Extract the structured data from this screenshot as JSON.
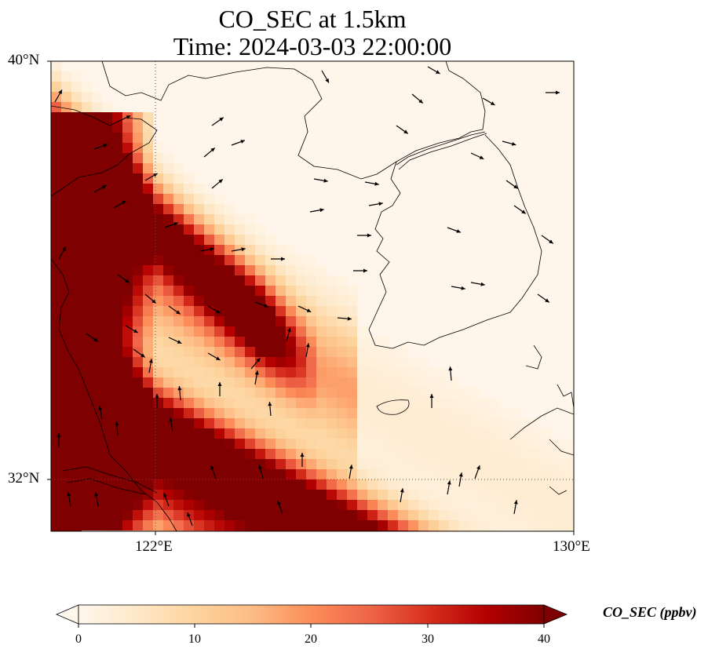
{
  "title": {
    "line1": "CO_SEC at 1.5km",
    "line2": "Time: 2024-03-03 22:00:00"
  },
  "axes": {
    "lat_ticks": [
      "40°N",
      "32°N"
    ],
    "lon_ticks": [
      "122°E",
      "130°E"
    ],
    "lat_range": [
      31,
      40
    ],
    "lon_range": [
      120,
      130
    ],
    "gridlines": "dotted at 122°E and 32°N"
  },
  "colorbar": {
    "label": "CO_SEC (ppbv)",
    "ticks": [
      "0",
      "10",
      "20",
      "30",
      "40"
    ],
    "range": [
      0,
      40
    ],
    "extend": "both",
    "colormap": [
      "#fff7ec",
      "#fee8c8",
      "#fdd49e",
      "#fdbb84",
      "#fc8d59",
      "#ef6548",
      "#d7301f",
      "#b30000",
      "#7f0000"
    ]
  },
  "chart_data": {
    "type": "heatmap",
    "title": "CO_SEC at 1.5km\nTime: 2024-03-03 22:00:00",
    "variable": "CO_SEC",
    "units": "ppbv",
    "features": [
      "coastlines",
      "wind vectors"
    ]
  }
}
